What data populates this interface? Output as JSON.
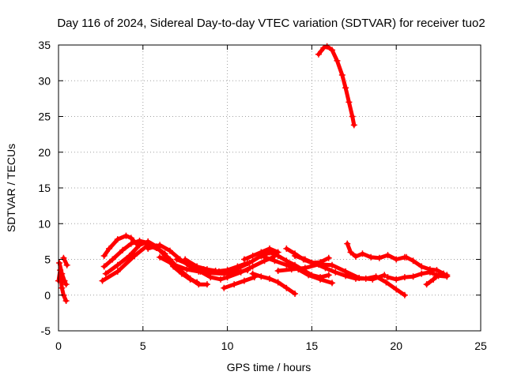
{
  "chart_data": {
    "type": "scatter",
    "title": "Day 116 of 2024, Sidereal Day-to-day VTEC variation (SDTVAR) for receiver tuo2",
    "xlabel": "GPS time / hours",
    "ylabel": "SDTVAR / TECUs",
    "xlim": [
      0,
      25
    ],
    "ylim": [
      -5,
      35
    ],
    "xticks": [
      0,
      5,
      10,
      15,
      20,
      25
    ],
    "yticks": [
      -5,
      0,
      5,
      10,
      15,
      20,
      25,
      30,
      35
    ],
    "grid": true,
    "marker": "+",
    "color": "#ff0000",
    "series": [
      {
        "name": "arc-1",
        "x": [
          0.0,
          0.1,
          0.2,
          0.3,
          0.45
        ],
        "y": [
          2.0,
          3.5,
          1.0,
          0.0,
          -0.8
        ]
      },
      {
        "name": "arc-2",
        "x": [
          0.05,
          0.2,
          0.35,
          0.45
        ],
        "y": [
          4.5,
          3.0,
          2.0,
          1.5
        ]
      },
      {
        "name": "arc-3",
        "x": [
          0.3,
          0.5
        ],
        "y": [
          5.2,
          4.2
        ]
      },
      {
        "name": "arc-4",
        "x": [
          2.7,
          3.0,
          3.5,
          4.0,
          4.3,
          4.6
        ],
        "y": [
          5.5,
          6.5,
          7.8,
          8.3,
          8.0,
          7.2
        ]
      },
      {
        "name": "arc-5",
        "x": [
          2.7,
          3.2,
          3.8,
          4.3,
          4.8,
          5.3,
          5.8,
          6.3
        ],
        "y": [
          4.0,
          5.0,
          6.3,
          7.2,
          7.6,
          7.3,
          6.6,
          5.8
        ]
      },
      {
        "name": "arc-6",
        "x": [
          2.6,
          3.5,
          4.5,
          5.3,
          6.0,
          6.6,
          7.2,
          7.8,
          8.3,
          8.8
        ],
        "y": [
          2.0,
          3.3,
          5.5,
          7.0,
          6.3,
          5.0,
          3.5,
          2.3,
          1.5,
          1.5
        ]
      },
      {
        "name": "arc-7",
        "x": [
          2.8,
          3.5,
          4.2,
          4.8,
          5.3,
          5.8,
          6.3,
          6.8,
          7.3,
          7.8,
          8.2
        ],
        "y": [
          3.0,
          4.2,
          5.5,
          7.0,
          7.5,
          6.8,
          5.5,
          4.0,
          3.0,
          2.2,
          1.8
        ]
      },
      {
        "name": "arc-8",
        "x": [
          5.3,
          6.0,
          6.6,
          7.2,
          7.8,
          8.4,
          9.0,
          9.6,
          10.0
        ],
        "y": [
          6.5,
          7.0,
          6.2,
          5.0,
          4.0,
          3.3,
          2.5,
          2.2,
          2.5
        ]
      },
      {
        "name": "arc-9",
        "x": [
          6.0,
          6.8,
          7.6,
          8.3,
          9.0,
          9.8,
          10.6,
          11.2
        ],
        "y": [
          5.3,
          4.3,
          3.6,
          3.3,
          3.1,
          3.0,
          3.2,
          3.5
        ]
      },
      {
        "name": "arc-10",
        "x": [
          7.0,
          7.8,
          8.6,
          9.3,
          10.0,
          10.6,
          11.2
        ],
        "y": [
          5.0,
          4.2,
          3.6,
          3.3,
          3.5,
          4.0,
          4.5
        ]
      },
      {
        "name": "arc-11",
        "x": [
          7.5,
          8.2,
          8.8,
          9.3
        ],
        "y": [
          5.0,
          4.0,
          3.6,
          3.4
        ]
      },
      {
        "name": "arc-12",
        "x": [
          8.5,
          9.5,
          10.5,
          11.3,
          12.0,
          12.6
        ],
        "y": [
          3.5,
          3.3,
          3.6,
          4.5,
          5.5,
          6.0
        ]
      },
      {
        "name": "arc-13",
        "x": [
          9.8,
          10.4,
          11.0,
          11.6
        ],
        "y": [
          1.0,
          1.5,
          2.0,
          2.5
        ]
      },
      {
        "name": "arc-14",
        "x": [
          10.0,
          10.8,
          11.5,
          12.2,
          12.7
        ],
        "y": [
          2.5,
          3.2,
          4.0,
          4.8,
          5.3
        ]
      },
      {
        "name": "arc-15",
        "x": [
          11.0,
          11.5,
          12.0,
          12.5,
          13.0
        ],
        "y": [
          5.0,
          5.5,
          6.0,
          6.5,
          6.0
        ]
      },
      {
        "name": "arc-16",
        "x": [
          11.5,
          12.0,
          12.5,
          13.0,
          13.5,
          14.0
        ],
        "y": [
          3.0,
          2.6,
          2.3,
          1.8,
          1.0,
          0.2
        ]
      },
      {
        "name": "arc-17",
        "x": [
          12.0,
          12.8,
          13.5,
          14.2,
          14.8,
          15.5,
          16.2
        ],
        "y": [
          5.5,
          4.8,
          4.2,
          3.6,
          2.8,
          2.2,
          1.7
        ]
      },
      {
        "name": "arc-18",
        "x": [
          12.5,
          13.0,
          13.5,
          14.0,
          14.5,
          15.0,
          15.5,
          16.0
        ],
        "y": [
          6.0,
          5.5,
          4.8,
          4.2,
          3.5,
          2.8,
          2.5,
          2.8
        ]
      },
      {
        "name": "arc-19",
        "x": [
          13.5,
          14.0,
          14.5,
          15.0,
          15.5,
          16.0
        ],
        "y": [
          6.5,
          5.8,
          5.0,
          4.5,
          4.6,
          5.2
        ]
      },
      {
        "name": "arc-20",
        "x": [
          14.0,
          14.6,
          15.2,
          15.8,
          16.4,
          17.0,
          17.6,
          18.2,
          18.8,
          19.4,
          20.0,
          20.5
        ],
        "y": [
          5.5,
          5.0,
          4.4,
          3.8,
          3.2,
          2.7,
          2.3,
          2.3,
          2.6,
          1.8,
          0.8,
          0.0
        ]
      },
      {
        "name": "arc-21",
        "x": [
          13.0,
          13.8,
          14.6,
          15.4,
          16.2,
          17.0,
          17.8,
          18.6,
          19.3
        ],
        "y": [
          3.4,
          3.6,
          3.8,
          4.3,
          4.2,
          3.3,
          2.4,
          2.2,
          2.8
        ]
      },
      {
        "name": "arc-22",
        "x": [
          15.4,
          15.7,
          15.9,
          16.2,
          16.5,
          16.8,
          17.0,
          17.2,
          17.4,
          17.5
        ],
        "y": [
          33.7,
          34.6,
          34.8,
          34.3,
          32.8,
          30.8,
          29.0,
          27.0,
          25.0,
          23.8
        ]
      },
      {
        "name": "arc-23",
        "x": [
          17.1,
          17.3,
          17.6,
          18.0,
          18.5,
          19.0,
          19.5,
          20.0,
          20.5
        ],
        "y": [
          7.2,
          6.0,
          5.4,
          5.8,
          5.3,
          5.2,
          5.6,
          5.0,
          5.3
        ]
      },
      {
        "name": "arc-24",
        "x": [
          19.5,
          20.0,
          20.5,
          21.0,
          21.5,
          22.0,
          22.5,
          23.0
        ],
        "y": [
          2.5,
          2.2,
          2.5,
          2.6,
          3.0,
          3.2,
          2.7,
          2.6
        ]
      },
      {
        "name": "arc-25",
        "x": [
          20.6,
          21.0,
          21.5,
          22.0,
          22.4,
          22.8
        ],
        "y": [
          5.3,
          4.8,
          4.0,
          3.6,
          3.5,
          3.0
        ]
      },
      {
        "name": "arc-26",
        "x": [
          21.8,
          22.2,
          22.6,
          23.0
        ],
        "y": [
          1.5,
          2.2,
          3.0,
          2.8
        ]
      }
    ]
  }
}
